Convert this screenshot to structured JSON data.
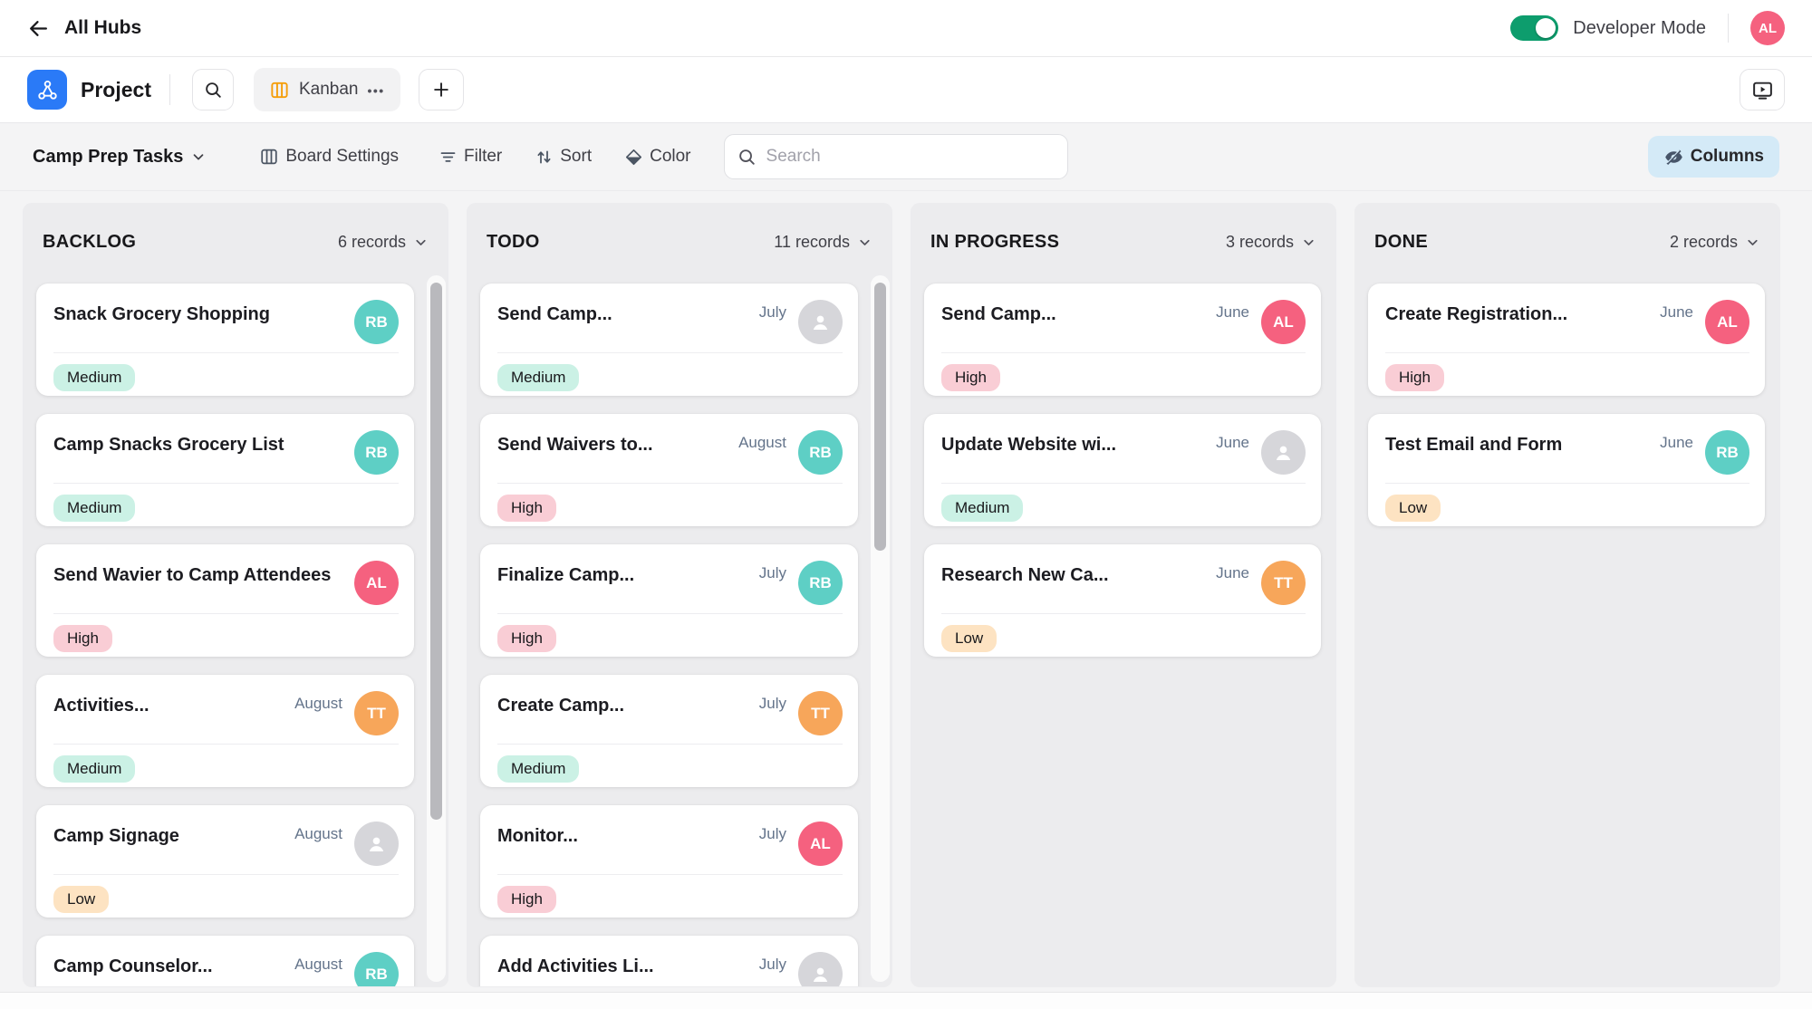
{
  "topbar": {
    "back_label": "All Hubs",
    "developer_mode_label": "Developer Mode",
    "user_initials": "AL"
  },
  "appbar": {
    "title": "Project",
    "view_tab": {
      "label": "Kanban",
      "more_dots": "•••"
    }
  },
  "toolbar": {
    "table_selector_label": "Camp Prep Tasks",
    "board_settings_label": "Board Settings",
    "filter_label": "Filter",
    "sort_label": "Sort",
    "color_label": "Color",
    "search_placeholder": "Search",
    "columns_label": "Columns"
  },
  "board": {
    "columns": [
      {
        "title": "BACKLOG",
        "records_label": "6 records",
        "cards": [
          {
            "title": "Snack Grocery Shopping",
            "date": "",
            "assignee": "RB",
            "priority": "Medium"
          },
          {
            "title": "Camp Snacks Grocery List",
            "date": "",
            "assignee": "RB",
            "priority": "Medium"
          },
          {
            "title": "Send Wavier to Camp Attendees",
            "date": "",
            "assignee": "AL",
            "priority": "High"
          },
          {
            "title": "Activities...",
            "date": "August",
            "assignee": "TT",
            "priority": "Medium"
          },
          {
            "title": "Camp Signage",
            "date": "August",
            "assignee": null,
            "priority": "Low"
          },
          {
            "title": "Camp Counselor...",
            "date": "August",
            "assignee": "RB",
            "priority": null
          }
        ]
      },
      {
        "title": "TODO",
        "records_label": "11 records",
        "cards": [
          {
            "title": "Send Camp...",
            "date": "July",
            "assignee": null,
            "priority": "Medium"
          },
          {
            "title": "Send Waivers to...",
            "date": "August",
            "assignee": "RB",
            "priority": "High"
          },
          {
            "title": "Finalize Camp...",
            "date": "July",
            "assignee": "RB",
            "priority": "High"
          },
          {
            "title": "Create Camp...",
            "date": "July",
            "assignee": "TT",
            "priority": "Medium"
          },
          {
            "title": "Monitor...",
            "date": "July",
            "assignee": "AL",
            "priority": "High"
          },
          {
            "title": "Add Activities Li...",
            "date": "July",
            "assignee": null,
            "priority": null
          }
        ]
      },
      {
        "title": "IN PROGRESS",
        "records_label": "3 records",
        "cards": [
          {
            "title": "Send Camp...",
            "date": "June",
            "assignee": "AL",
            "priority": "High"
          },
          {
            "title": "Update Website wi...",
            "date": "June",
            "assignee": null,
            "priority": "Medium"
          },
          {
            "title": "Research New Ca...",
            "date": "June",
            "assignee": "TT",
            "priority": "Low"
          }
        ]
      },
      {
        "title": "DONE",
        "records_label": "2 records",
        "cards": [
          {
            "title": "Create Registration...",
            "date": "June",
            "assignee": "AL",
            "priority": "High"
          },
          {
            "title": "Test Email and Form",
            "date": "June",
            "assignee": "RB",
            "priority": "Low"
          }
        ]
      }
    ]
  },
  "colors": {
    "accent_blue": "#2a7af7",
    "toggle_green": "#0d9d6d",
    "kanban_icon_orange": "#f59e0b",
    "columns_button_bg": "#d4eaf7",
    "avatar_colors": {
      "RB": "#5ecfc5",
      "AL": "#f5617f",
      "TT": "#f7a65a"
    },
    "priority_colors": {
      "Medium": "#cbf1e5",
      "High": "#f9cdd5",
      "Low": "#fde3c2"
    }
  }
}
